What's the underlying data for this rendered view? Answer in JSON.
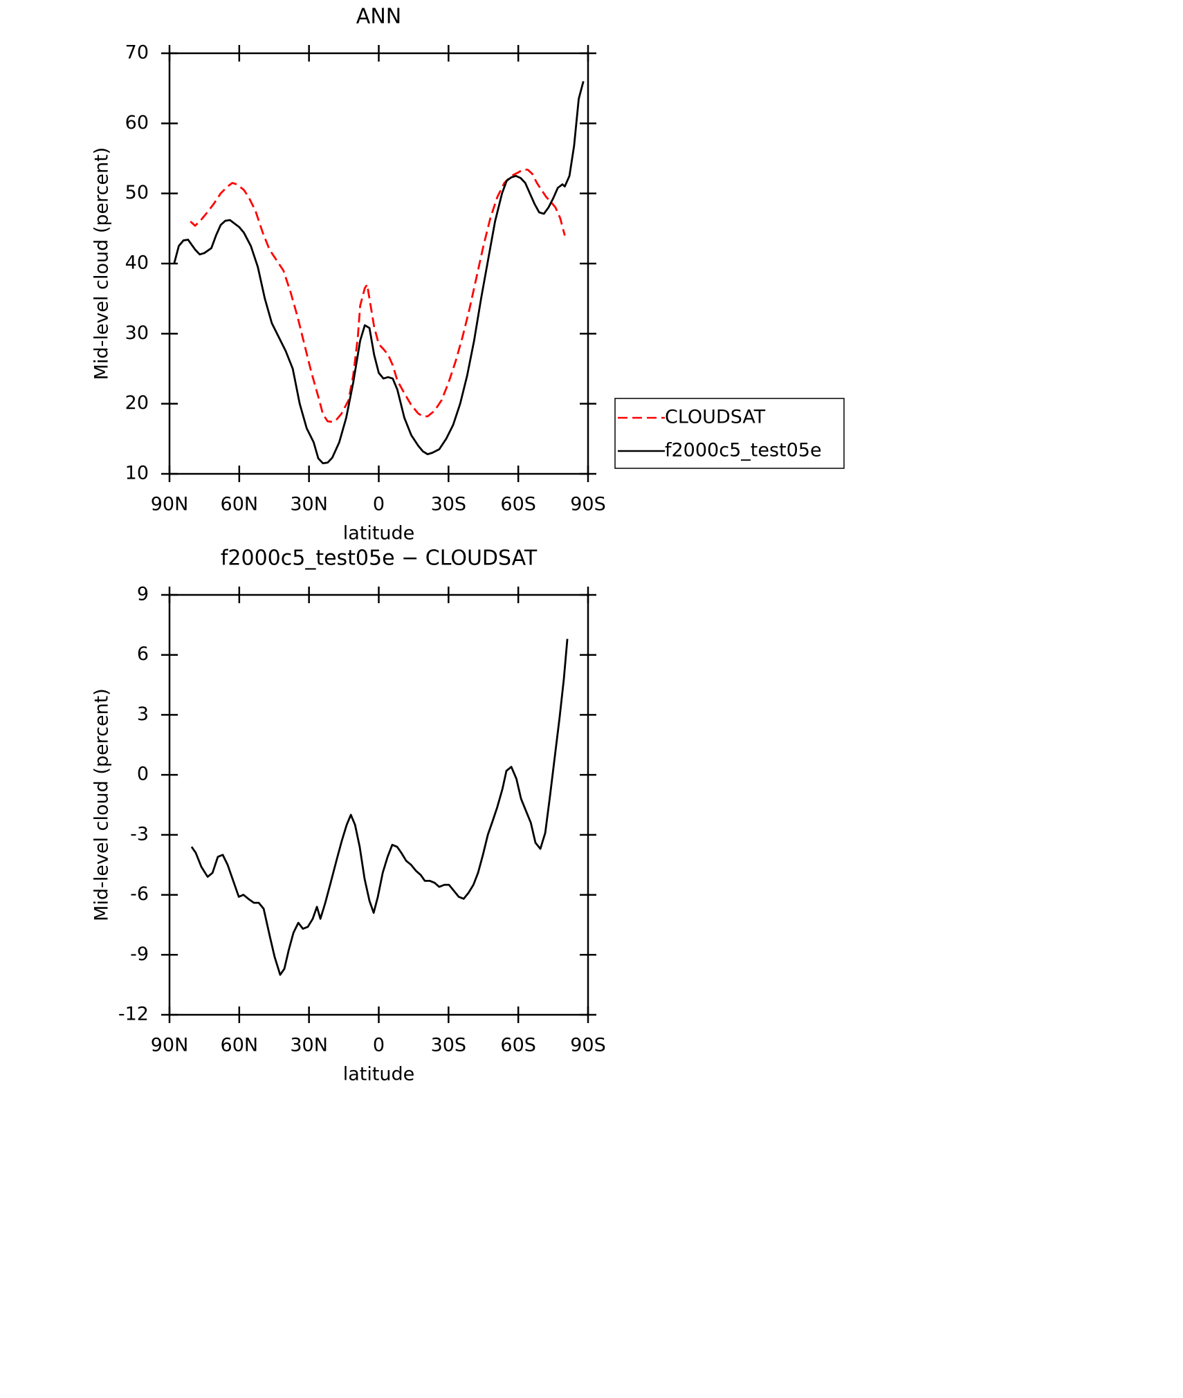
{
  "chart_data": [
    {
      "type": "line",
      "title": "ANN",
      "xlabel": "latitude",
      "ylabel": "Mid-level cloud (percent)",
      "xlim": [
        90,
        -90
      ],
      "xticks": [
        {
          "value": 90,
          "label": "90N"
        },
        {
          "value": 60,
          "label": "60N"
        },
        {
          "value": 30,
          "label": "30N"
        },
        0,
        {
          "value": -30,
          "label": "30S"
        },
        {
          "value": -60,
          "label": "60S"
        },
        {
          "value": -90,
          "label": "90S"
        }
      ],
      "ylim": [
        10,
        70
      ],
      "yticks": [
        10,
        20,
        30,
        40,
        50,
        60,
        70
      ],
      "legend": "right",
      "series": [
        {
          "name": "CLOUDSAT",
          "color": "#ff0000",
          "dash": "dashed",
          "x": [
            81,
            79,
            77,
            74,
            71,
            68,
            65,
            63,
            61,
            58,
            56,
            53,
            50,
            47,
            44,
            41,
            38,
            35,
            32,
            29,
            26,
            24,
            22,
            20,
            18,
            16,
            13,
            11,
            9,
            8,
            6,
            5,
            4,
            2,
            0,
            -2,
            -4,
            -6,
            -8,
            -11,
            -14,
            -17,
            -19,
            -21,
            -24,
            -27,
            -30,
            -33,
            -36,
            -39,
            -42,
            -45,
            -48,
            -51,
            -54,
            -57,
            -60,
            -62,
            -64,
            -66,
            -68,
            -70,
            -72,
            -74,
            -76,
            -78,
            -80
          ],
          "values": [
            46,
            45.4,
            46,
            47.2,
            48.5,
            50,
            51,
            51.5,
            51.3,
            50.5,
            49.5,
            47.5,
            44.5,
            42,
            40.5,
            39,
            36,
            32.5,
            28.5,
            24.5,
            21,
            18.5,
            17.5,
            17.4,
            17.8,
            18.6,
            20.5,
            24,
            29.5,
            34,
            36.5,
            37,
            35,
            31,
            28.5,
            27.8,
            27,
            25.5,
            23.3,
            21.5,
            19.8,
            18.6,
            18.2,
            18.2,
            19,
            20.5,
            23,
            26,
            29.5,
            33.5,
            38,
            42.5,
            46.5,
            49.5,
            51.5,
            52.5,
            53,
            53.4,
            53.4,
            52.8,
            51.5,
            50.5,
            49.5,
            48.8,
            48,
            46.5,
            44
          ]
        },
        {
          "name": "f2000c5_test05e",
          "color": "#000000",
          "dash": "solid",
          "x": [
            88,
            86,
            84,
            82,
            79,
            77,
            75,
            72,
            70,
            68,
            66,
            64,
            62,
            60,
            58,
            55,
            52,
            49,
            46,
            43,
            40,
            37,
            34,
            31,
            28,
            26,
            24,
            22,
            20,
            17,
            14,
            11,
            8,
            6,
            4,
            2,
            0,
            -2,
            -4,
            -6,
            -8,
            -11,
            -14,
            -17,
            -19,
            -21,
            -23,
            -26,
            -29,
            -32,
            -35,
            -38,
            -41,
            -44,
            -47,
            -50,
            -53,
            -55,
            -57,
            -59,
            -61,
            -63,
            -65,
            -67,
            -69,
            -71,
            -73,
            -75,
            -77,
            -79,
            -80,
            -82,
            -84,
            -86,
            -88
          ],
          "values": [
            40,
            42.5,
            43.3,
            43.4,
            42,
            41.3,
            41.5,
            42.2,
            44,
            45.5,
            46.1,
            46.2,
            45.7,
            45.2,
            44.4,
            42.5,
            39.5,
            35,
            31.5,
            29.5,
            27.5,
            25,
            20,
            16.5,
            14.5,
            12.2,
            11.5,
            11.6,
            12.3,
            14.5,
            18,
            23,
            29,
            31.2,
            30.8,
            27,
            24.4,
            23.6,
            23.8,
            23.6,
            22,
            18,
            15.5,
            14,
            13.2,
            12.8,
            13,
            13.5,
            15,
            17,
            20,
            24,
            29,
            35,
            40.5,
            46,
            50,
            51.8,
            52.3,
            52.5,
            52.2,
            51.5,
            50,
            48.5,
            47.3,
            47.1,
            48,
            49.3,
            50.8,
            51.3,
            51,
            52.5,
            56.8,
            63.5,
            66
          ]
        }
      ]
    },
    {
      "type": "line",
      "title": "f2000c5_test05e − CLOUDSAT",
      "xlabel": "latitude",
      "ylabel": "Mid-level cloud (percent)",
      "xlim": [
        90,
        -90
      ],
      "xticks": [
        {
          "value": 90,
          "label": "90N"
        },
        {
          "value": 60,
          "label": "60N"
        },
        {
          "value": 30,
          "label": "30N"
        },
        0,
        {
          "value": -30,
          "label": "30S"
        },
        {
          "value": -60,
          "label": "60S"
        },
        {
          "value": -90,
          "label": "90S"
        }
      ],
      "ylim": [
        -12,
        9
      ],
      "yticks": [
        -12,
        -9,
        -6,
        -3,
        0,
        3,
        6,
        9
      ],
      "series": [
        {
          "color": "#000000",
          "dash": "solid",
          "x": [
            80.5,
            78.7,
            76.3,
            73.6,
            71.5,
            69.2,
            67.1,
            65,
            62.6,
            60.2,
            58.2,
            56.1,
            53.7,
            51.6,
            49.5,
            46.8,
            44.8,
            42.4,
            40.6,
            38.8,
            36.7,
            34.6,
            32.6,
            30.5,
            28.4,
            26.6,
            25.1,
            23,
            20.7,
            18,
            15.9,
            13.8,
            12,
            10.2,
            8.2,
            6.1,
            4,
            2.2,
            0.4,
            -1.7,
            -3.8,
            -5.8,
            -7.9,
            -9.7,
            -11.8,
            -13.9,
            -16,
            -18,
            -19.8,
            -21.9,
            -24,
            -26,
            -28.2,
            -30.2,
            -32.3,
            -34.4,
            -36.5,
            -38.6,
            -40.7,
            -42.7,
            -44.8,
            -46.9,
            -49,
            -51,
            -53.2,
            -54.9,
            -57,
            -59.2,
            -61.2,
            -63.3,
            -65.4,
            -67.4,
            -69.5,
            -71.6,
            -73.7,
            -75.8,
            -77.8,
            -79.6,
            -81.1
          ],
          "values": [
            -3.6,
            -3.9,
            -4.6,
            -5.1,
            -4.9,
            -4.1,
            -4.0,
            -4.5,
            -5.3,
            -6.1,
            -6.0,
            -6.2,
            -6.4,
            -6.4,
            -6.7,
            -8.1,
            -9.1,
            -10.0,
            -9.7,
            -8.8,
            -7.9,
            -7.4,
            -7.7,
            -7.6,
            -7.2,
            -6.6,
            -7.2,
            -6.4,
            -5.4,
            -4.2,
            -3.3,
            -2.5,
            -2.0,
            -2.5,
            -3.6,
            -5.2,
            -6.3,
            -6.9,
            -6.1,
            -4.9,
            -4.1,
            -3.5,
            -3.6,
            -3.9,
            -4.3,
            -4.5,
            -4.8,
            -5.0,
            -5.3,
            -5.3,
            -5.4,
            -5.6,
            -5.5,
            -5.5,
            -5.8,
            -6.1,
            -6.2,
            -5.9,
            -5.5,
            -4.9,
            -4.0,
            -3.0,
            -2.3,
            -1.6,
            -0.7,
            0.2,
            0.4,
            -0.2,
            -1.2,
            -1.8,
            -2.4,
            -3.4,
            -3.7,
            -2.9,
            -1.0,
            1.0,
            2.9,
            4.8,
            6.8
          ]
        }
      ]
    }
  ]
}
